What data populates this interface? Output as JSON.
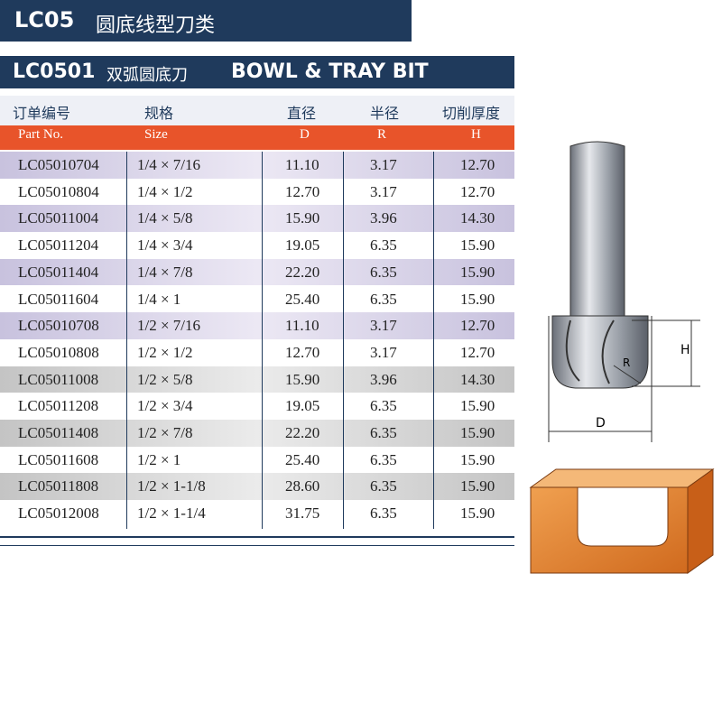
{
  "header": {
    "code": "LC05",
    "title": "圆底线型刀类"
  },
  "subheader": {
    "code": "LC0501",
    "title_cn": "双弧圆底刀",
    "title_en": "BOWL & TRAY BIT"
  },
  "table": {
    "header_cn": [
      "订单编号",
      "规格",
      "直径",
      "半径",
      "切削厚度"
    ],
    "header_en": [
      "Part No.",
      "Size",
      "D",
      "R",
      "H"
    ],
    "rows": [
      [
        "LC05010704",
        "1/4 × 7/16",
        "11.10",
        "3.17",
        "12.70"
      ],
      [
        "LC05010804",
        "1/4 × 1/2",
        "12.70",
        "3.17",
        "12.70"
      ],
      [
        "LC05011004",
        "1/4 × 5/8",
        "15.90",
        "3.96",
        "14.30"
      ],
      [
        "LC05011204",
        "1/4 × 3/4",
        "19.05",
        "6.35",
        "15.90"
      ],
      [
        "LC05011404",
        "1/4 × 7/8",
        "22.20",
        "6.35",
        "15.90"
      ],
      [
        "LC05011604",
        "1/4 × 1",
        "25.40",
        "6.35",
        "15.90"
      ],
      [
        "LC05010708",
        "1/2 × 7/16",
        "11.10",
        "3.17",
        "12.70"
      ],
      [
        "LC05010808",
        "1/2 × 1/2",
        "12.70",
        "3.17",
        "12.70"
      ],
      [
        "LC05011008",
        "1/2 × 5/8",
        "15.90",
        "3.96",
        "14.30"
      ],
      [
        "LC05011208",
        "1/2 × 3/4",
        "19.05",
        "6.35",
        "15.90"
      ],
      [
        "LC05011408",
        "1/2 × 7/8",
        "22.20",
        "6.35",
        "15.90"
      ],
      [
        "LC05011608",
        "1/2 × 1",
        "25.40",
        "6.35",
        "15.90"
      ],
      [
        "LC05011808",
        "1/2 × 1-1/8",
        "28.60",
        "6.35",
        "15.90"
      ],
      [
        "LC05012008",
        "1/2 × 1-1/4",
        "31.75",
        "6.35",
        "15.90"
      ]
    ]
  },
  "diagram": {
    "h_label": "H",
    "r_label": "R",
    "d_label": "D"
  }
}
